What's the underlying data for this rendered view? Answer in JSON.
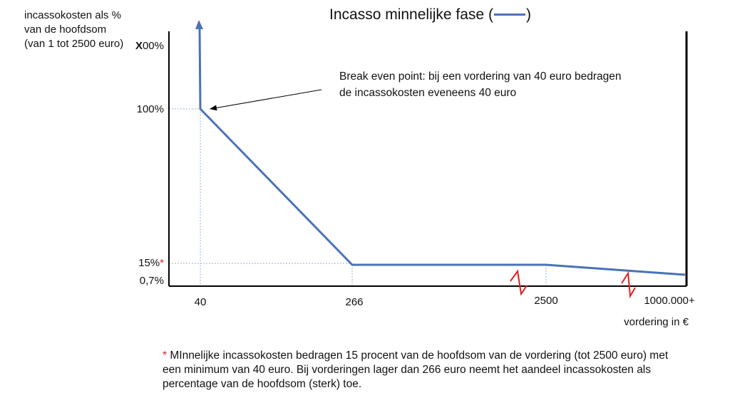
{
  "chart_data": {
    "type": "line",
    "title": "Incasso minnelijke fase (",
    "title_suffix": ")",
    "ylabel": "incassokosten als % van de hoofdsom (van 1 tot 2500 euro)",
    "xlabel": "vordering in €",
    "x_ticks": [
      "40",
      "266",
      "2500",
      "1000.000+"
    ],
    "y_ticks": [
      {
        "prefix": "X",
        "label": "00%"
      },
      {
        "prefix": "",
        "label": "100%"
      },
      {
        "prefix": "",
        "label": "15%",
        "marker": "*"
      },
      {
        "prefix": "",
        "label": "0,7%"
      }
    ],
    "series": [
      {
        "color": "#4a72b8",
        "points": [
          {
            "x": "40",
            "y": "X00%"
          },
          {
            "x": "40",
            "y": 100
          },
          {
            "x": "266",
            "y": 15
          },
          {
            "x": "2500",
            "y": 15
          },
          {
            "x": "1000.000+",
            "y": 0.7
          }
        ]
      }
    ],
    "axis_break_marks": [
      "266-2500",
      "2500-1000.000+"
    ],
    "annotation": "Break even point: bij een vordering van 40 euro bedragen de incassokosten eveneens 40 euro",
    "grid": false
  },
  "note": {
    "marker": "*",
    "text": " MInnelijke incassokosten bedragen 15 procent van de hoofdsom  van de vordering (tot 2500 euro) met een minimum van 40 euro. Bij vorderingen lager dan 266 euro neemt het aandeel incassokosten als percentage van de hoofdsom (sterk) toe."
  },
  "colors": {
    "series": "#4a72b8",
    "break_marks": "#e02020",
    "axes": "#000000",
    "guides": "#8fb3de"
  }
}
